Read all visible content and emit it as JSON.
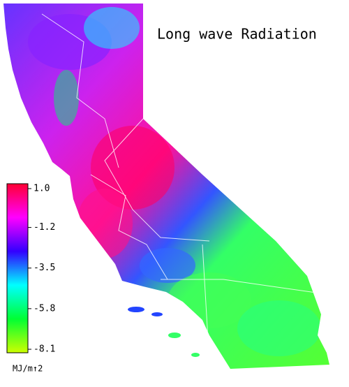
{
  "map": {
    "title": "Long wave Radiation",
    "colorbar": {
      "label": "MJ/m↑2",
      "lim": [
        -8.1,
        1.0
      ],
      "ticks": [
        {
          "value": 1.0,
          "label": "1.0"
        },
        -1.2,
        -3.5,
        -5.8,
        -8.1
      ],
      "colors": [
        "#ff0033",
        "#ff00ff",
        "#3300ff",
        "#00ffff",
        "#00ff33",
        "#ccff00"
      ]
    }
  }
}
